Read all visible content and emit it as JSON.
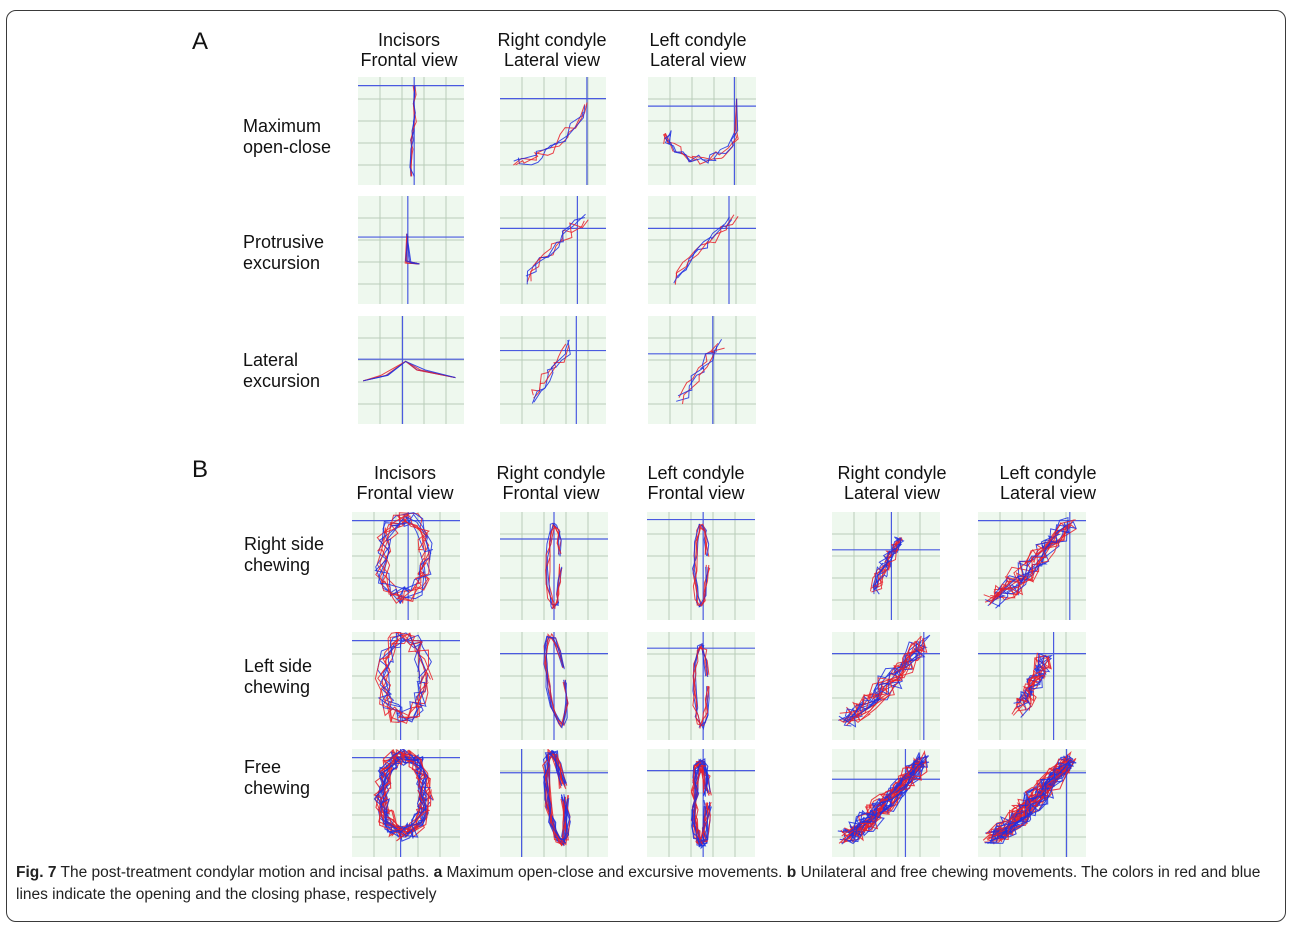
{
  "panelA": {
    "letter": "A",
    "columns": [
      {
        "line1": "Incisors",
        "line2": "Frontal view"
      },
      {
        "line1": "Right condyle",
        "line2": "Lateral view"
      },
      {
        "line1": "Left condyle",
        "line2": "Lateral view"
      }
    ],
    "rows": [
      {
        "line1": "Maximum",
        "line2": "open-close"
      },
      {
        "line1": "Protrusive",
        "line2": "excursion"
      },
      {
        "line1": "Lateral",
        "line2": "excursion"
      }
    ]
  },
  "panelB": {
    "letter": "B",
    "columns": [
      {
        "line1": "Incisors",
        "line2": "Frontal view"
      },
      {
        "line1": "Right condyle",
        "line2": "Frontal view"
      },
      {
        "line1": "Left condyle",
        "line2": "Frontal view"
      },
      {
        "line1": "Right condyle",
        "line2": "Lateral view"
      },
      {
        "line1": "Left condyle",
        "line2": "Lateral view"
      }
    ],
    "rows": [
      {
        "line1": "Right side",
        "line2": "chewing"
      },
      {
        "line1": "Left side",
        "line2": "chewing"
      },
      {
        "line1": "Free",
        "line2": "chewing"
      }
    ]
  },
  "caption": {
    "fig_label": "Fig. 7",
    "text1": " The post-treatment condylar motion and incisal paths. ",
    "a_label": "a",
    "text2": " Maximum open-close and excursive movements. ",
    "b_label": "b",
    "text3": " Unilateral and free chewing movements. The colors in red and blue lines indicate the opening and the closing phase, respectively"
  },
  "colors": {
    "opening_phase": "#e8202a",
    "closing_phase": "#1f2fe0",
    "plot_background": "#eef8ee",
    "grid": "#b9cdb9",
    "crosshair": "#4a5ae0"
  }
}
